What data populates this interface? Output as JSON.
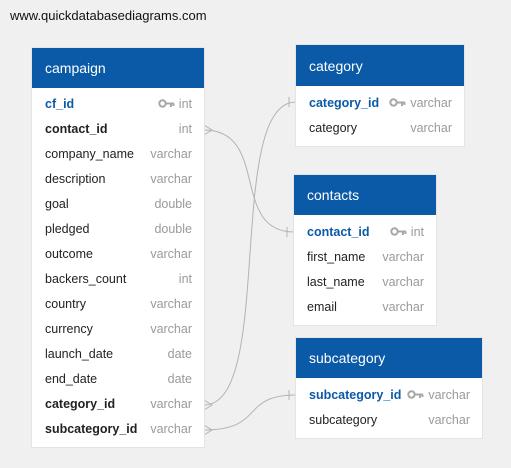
{
  "site": "www.quickdatabasediagrams.com",
  "tables": {
    "campaign": {
      "title": "campaign",
      "fields": [
        {
          "name": "cf_id",
          "type": "int"
        },
        {
          "name": "contact_id",
          "type": "int"
        },
        {
          "name": "company_name",
          "type": "varchar"
        },
        {
          "name": "description",
          "type": "varchar"
        },
        {
          "name": "goal",
          "type": "double"
        },
        {
          "name": "pledged",
          "type": "double"
        },
        {
          "name": "outcome",
          "type": "varchar"
        },
        {
          "name": "backers_count",
          "type": "int"
        },
        {
          "name": "country",
          "type": "varchar"
        },
        {
          "name": "currency",
          "type": "varchar"
        },
        {
          "name": "launch_date",
          "type": "date"
        },
        {
          "name": "end_date",
          "type": "date"
        },
        {
          "name": "category_id",
          "type": "varchar"
        },
        {
          "name": "subcategory_id",
          "type": "varchar"
        }
      ]
    },
    "category": {
      "title": "category",
      "fields": [
        {
          "name": "category_id",
          "type": "varchar"
        },
        {
          "name": "category",
          "type": "varchar"
        }
      ]
    },
    "contacts": {
      "title": "contacts",
      "fields": [
        {
          "name": "contact_id",
          "type": "int"
        },
        {
          "name": "first_name",
          "type": "varchar"
        },
        {
          "name": "last_name",
          "type": "varchar"
        },
        {
          "name": "email",
          "type": "varchar"
        }
      ]
    },
    "subcategory": {
      "title": "subcategory",
      "fields": [
        {
          "name": "subcategory_id",
          "type": "varchar"
        },
        {
          "name": "subcategory",
          "type": "varchar"
        }
      ]
    }
  },
  "colors": {
    "header": "#0b5aa7",
    "primary_key": "#0b5aa7",
    "type_text": "#9a9a9a",
    "connector": "#b3b3b3"
  },
  "icons": {
    "primary_key": "key-icon"
  }
}
